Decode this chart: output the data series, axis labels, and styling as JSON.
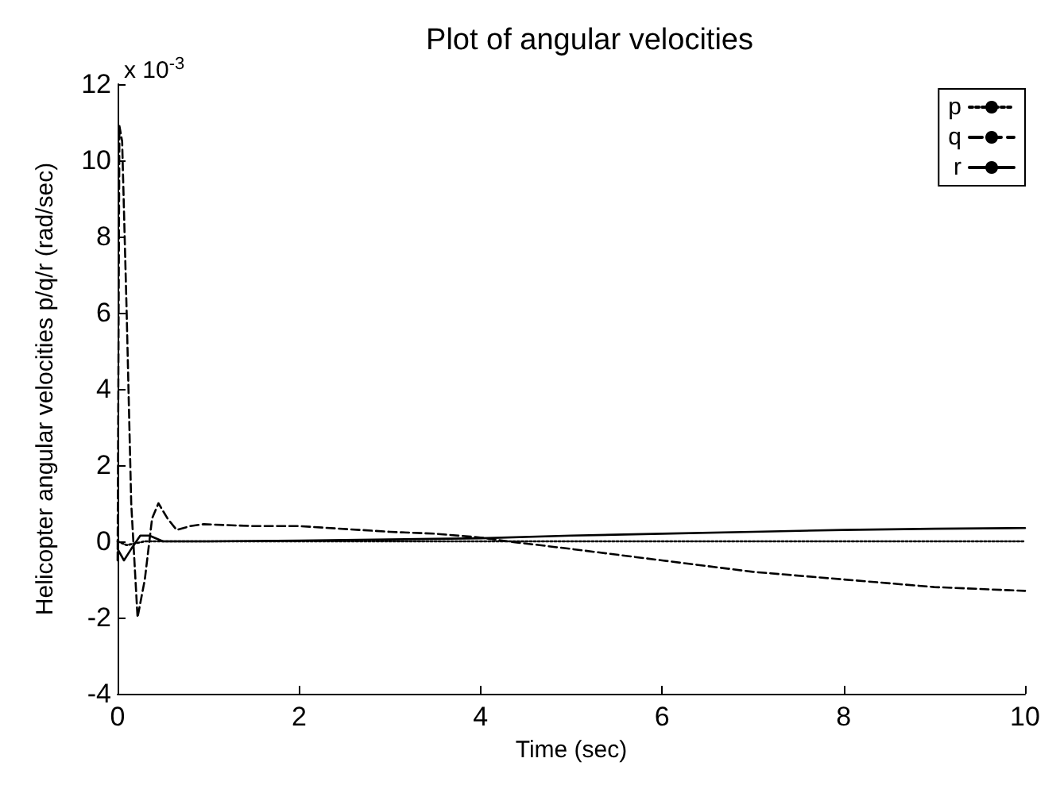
{
  "chart_data": {
    "type": "line",
    "title": "Plot of angular velocities",
    "xlabel": "Time (sec)",
    "ylabel": "Helicopter angular velocities p/q/r (rad/sec)",
    "annotations": [
      "x 10$^{-3}$"
    ],
    "xlim": [
      0,
      10
    ],
    "xticks": [
      0,
      2,
      4,
      6,
      8,
      10
    ],
    "ylim": [
      -4,
      12
    ],
    "yticks": [
      -4,
      -2,
      0,
      2,
      4,
      6,
      8,
      10,
      12
    ],
    "grid": false,
    "legend": "top right",
    "marker": "none",
    "series": [
      {
        "name": "p",
        "color": "#000000",
        "line_style": "dotted",
        "x": [
          0,
          0.1,
          0.3,
          0.5,
          1,
          2,
          4,
          6,
          8,
          10
        ],
        "values": [
          0,
          -0.1,
          0,
          0,
          0,
          0,
          0,
          0,
          0,
          0
        ]
      },
      {
        "name": "q",
        "color": "#000000",
        "line_style": "dashed",
        "x": [
          0,
          0.02,
          0.05,
          0.1,
          0.15,
          0.22,
          0.3,
          0.38,
          0.45,
          0.55,
          0.65,
          0.8,
          0.95,
          1.5,
          2,
          3,
          3.5,
          4,
          4.3,
          5,
          6,
          7,
          8,
          9,
          10
        ],
        "values": [
          -0.5,
          10.9,
          10.5,
          6,
          1,
          -2,
          -1,
          0.6,
          1,
          0.6,
          0.3,
          0.4,
          0.45,
          0.4,
          0.4,
          0.25,
          0.2,
          0.1,
          0,
          -0.2,
          -0.5,
          -0.8,
          -1,
          -1.2,
          -1.3
        ]
      },
      {
        "name": "r",
        "color": "#000000",
        "line_style": "solid",
        "x": [
          0,
          0.07,
          0.15,
          0.25,
          0.35,
          0.5,
          1,
          2,
          3,
          4,
          5,
          6,
          7,
          8,
          9,
          10
        ],
        "values": [
          -0.2,
          -0.5,
          -0.2,
          0.15,
          0.15,
          0,
          0,
          0.02,
          0.05,
          0.08,
          0.15,
          0.2,
          0.25,
          0.3,
          0.33,
          0.35
        ]
      }
    ]
  }
}
